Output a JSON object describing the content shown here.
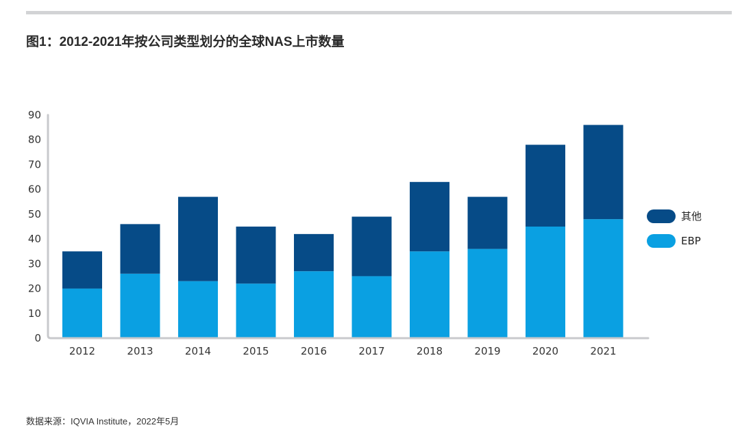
{
  "title": "图1：2012-2021年按公司类型划分的全球NAS上市数量",
  "source": "数据来源：IQVIA Institute，2022年5月",
  "colors": {
    "other": "#064b87",
    "ebp": "#0aa0e2",
    "axis": "#c8c9cc",
    "rule": "#d2d3d5"
  },
  "chart_data": {
    "type": "bar",
    "stacked": true,
    "categories": [
      "2012",
      "2013",
      "2014",
      "2015",
      "2016",
      "2017",
      "2018",
      "2019",
      "2020",
      "2021"
    ],
    "series": [
      {
        "name": "EBP",
        "values": [
          20,
          26,
          23,
          22,
          27,
          25,
          35,
          36,
          45,
          48
        ]
      },
      {
        "name": "其他",
        "values": [
          15,
          20,
          34,
          23,
          15,
          24,
          28,
          21,
          33,
          38
        ]
      }
    ],
    "title": "图1：2012-2021年按公司类型划分的全球NAS上市数量",
    "xlabel": "",
    "ylabel": "",
    "ylim": [
      0,
      90
    ],
    "yticks": [
      0,
      10,
      20,
      30,
      40,
      50,
      60,
      70,
      80,
      90
    ],
    "grid": false,
    "legend": {
      "position": "right",
      "entries": [
        "其他",
        "EBP"
      ]
    }
  }
}
